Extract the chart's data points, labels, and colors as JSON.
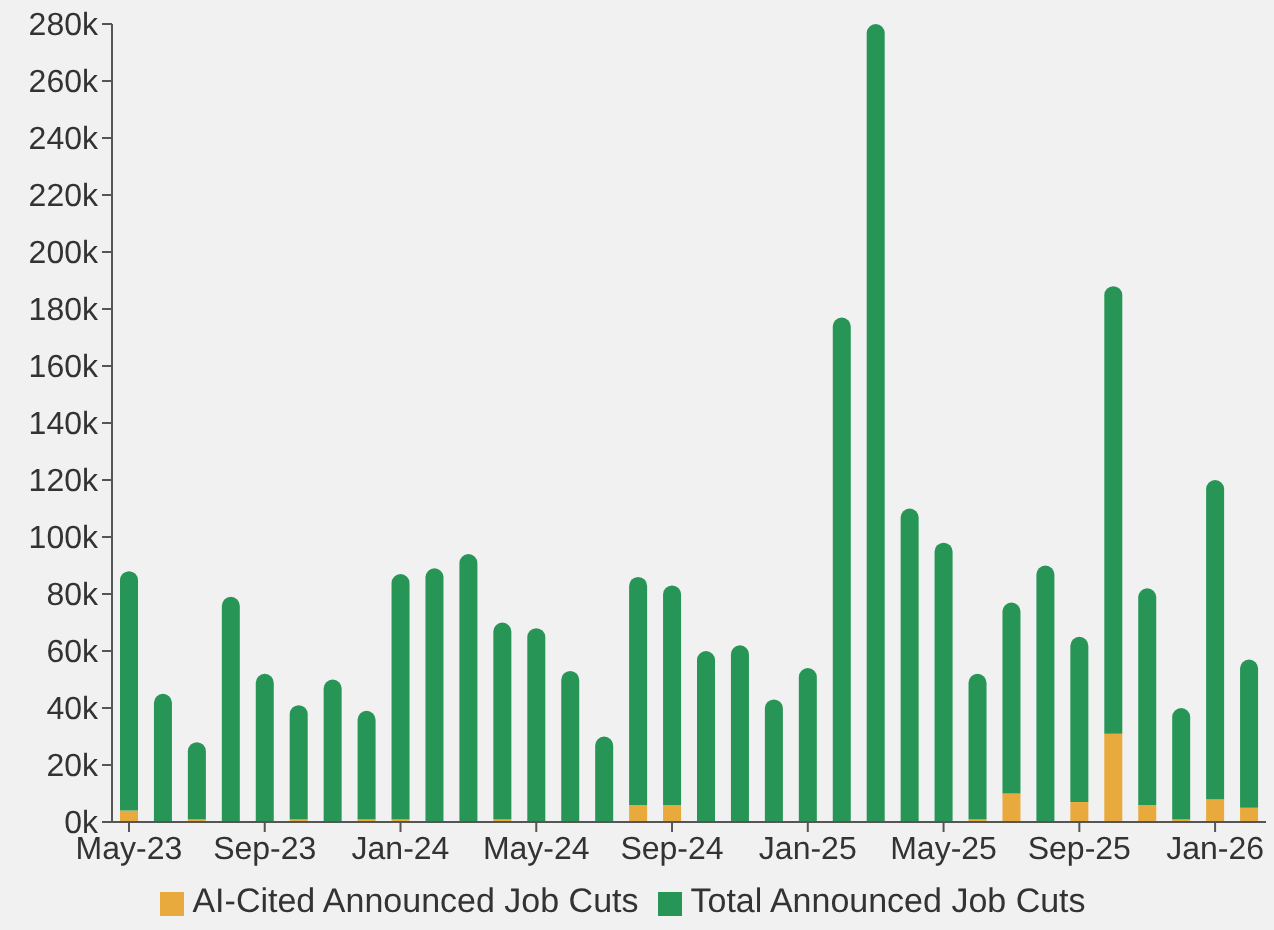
{
  "chart_data": {
    "type": "bar",
    "stacked": true,
    "categories": [
      "May-23",
      null,
      null,
      null,
      "Sep-23",
      null,
      null,
      null,
      "Jan-24",
      null,
      null,
      null,
      "May-24",
      null,
      null,
      null,
      "Sep-24",
      null,
      null,
      null,
      "Jan-25",
      null,
      null,
      null,
      "May-25",
      null,
      null,
      null,
      "Sep-25",
      null,
      null,
      null,
      "Jan-26",
      null
    ],
    "series": [
      {
        "name": "AI-Cited Announced Job Cuts",
        "color": "#e8a93d",
        "values": [
          4,
          0,
          1,
          0,
          0,
          1,
          0,
          1,
          1,
          0,
          0,
          1,
          0,
          0,
          0,
          6,
          6,
          0,
          0,
          0,
          0,
          0,
          0,
          0,
          0,
          1,
          10,
          0,
          7,
          31,
          6,
          1,
          8,
          5
        ]
      },
      {
        "name": "Total Announced Job Cuts",
        "color": "#279556",
        "values": [
          84,
          45,
          27,
          79,
          52,
          40,
          50,
          38,
          86,
          89,
          94,
          69,
          68,
          53,
          30,
          80,
          77,
          60,
          62,
          43,
          54,
          177,
          280,
          110,
          98,
          51,
          67,
          90,
          58,
          157,
          76,
          39,
          112,
          52
        ]
      }
    ],
    "ylim": [
      0,
      280
    ],
    "yticks": [
      {
        "value": 0,
        "label": "0k"
      },
      {
        "value": 20,
        "label": "20k"
      },
      {
        "value": 40,
        "label": "40k"
      },
      {
        "value": 60,
        "label": "60k"
      },
      {
        "value": 80,
        "label": "80k"
      },
      {
        "value": 100,
        "label": "100k"
      },
      {
        "value": 120,
        "label": "120k"
      },
      {
        "value": 140,
        "label": "140k"
      },
      {
        "value": 160,
        "label": "160k"
      },
      {
        "value": 180,
        "label": "180k"
      },
      {
        "value": 200,
        "label": "200k"
      },
      {
        "value": 220,
        "label": "220k"
      },
      {
        "value": 240,
        "label": "240k"
      },
      {
        "value": 260,
        "label": "260k"
      },
      {
        "value": 280,
        "label": "280k"
      }
    ],
    "grid": false,
    "legend": "bottom"
  }
}
